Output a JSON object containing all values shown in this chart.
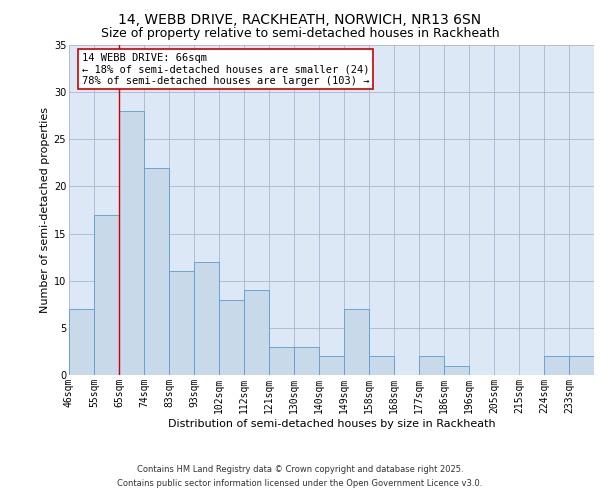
{
  "title_line1": "14, WEBB DRIVE, RACKHEATH, NORWICH, NR13 6SN",
  "title_line2": "Size of property relative to semi-detached houses in Rackheath",
  "xlabel": "Distribution of semi-detached houses by size in Rackheath",
  "ylabel": "Number of semi-detached properties",
  "categories": [
    "46sqm",
    "55sqm",
    "65sqm",
    "74sqm",
    "83sqm",
    "93sqm",
    "102sqm",
    "112sqm",
    "121sqm",
    "130sqm",
    "140sqm",
    "149sqm",
    "158sqm",
    "168sqm",
    "177sqm",
    "186sqm",
    "196sqm",
    "205sqm",
    "215sqm",
    "224sqm",
    "233sqm"
  ],
  "values": [
    7,
    17,
    28,
    22,
    11,
    12,
    8,
    9,
    3,
    3,
    2,
    7,
    2,
    0,
    2,
    1,
    0,
    0,
    0,
    2,
    2
  ],
  "bar_color": "#c8d9ea",
  "bar_edge_color": "#5b9bd5",
  "red_line_x": 2,
  "red_line_color": "#cc0000",
  "annotation_text": "14 WEBB DRIVE: 66sqm\n← 18% of semi-detached houses are smaller (24)\n78% of semi-detached houses are larger (103) →",
  "annotation_box_color": "#ffffff",
  "annotation_border_color": "#cc0000",
  "plot_background": "#dce8f5",
  "ylim": [
    0,
    35
  ],
  "yticks": [
    0,
    5,
    10,
    15,
    20,
    25,
    30,
    35
  ],
  "footer_line1": "Contains HM Land Registry data © Crown copyright and database right 2025.",
  "footer_line2": "Contains public sector information licensed under the Open Government Licence v3.0.",
  "title_fontsize": 10,
  "subtitle_fontsize": 9,
  "axis_label_fontsize": 8,
  "tick_fontsize": 7,
  "annotation_fontsize": 7.5,
  "footer_fontsize": 6
}
